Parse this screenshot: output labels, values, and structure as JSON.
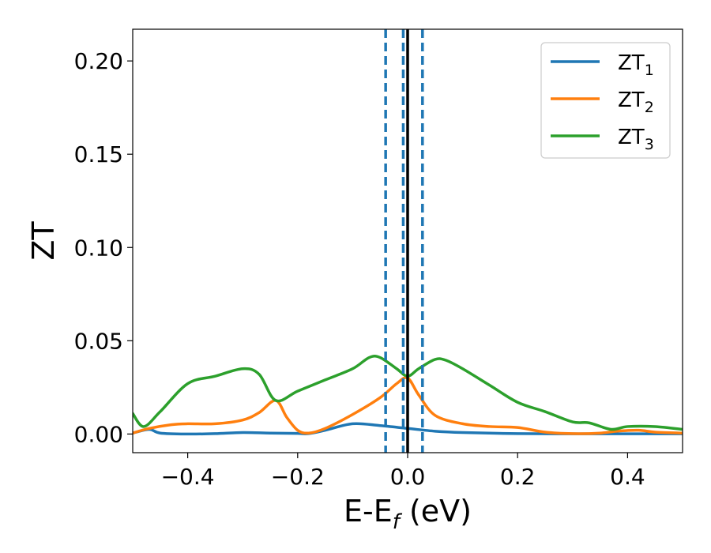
{
  "chart_data": {
    "type": "line",
    "xlabel": {
      "base": "E-E",
      "sub": "f",
      "suffix": " (eV)"
    },
    "ylabel": "ZT",
    "xlim": [
      -0.5,
      0.5
    ],
    "ylim": [
      -0.01,
      0.217
    ],
    "x_ticks": [
      -0.4,
      -0.2,
      0.0,
      0.2,
      0.4
    ],
    "x_tick_labels": [
      "−0.4",
      "−0.2",
      "0.0",
      "0.2",
      "0.4"
    ],
    "y_ticks": [
      0.0,
      0.05,
      0.1,
      0.15,
      0.2
    ],
    "y_tick_labels": [
      "0.00",
      "0.05",
      "0.10",
      "0.15",
      "0.20"
    ],
    "grid": false,
    "legend_position": "top-right",
    "series": [
      {
        "name": "ZT",
        "sub": "1",
        "color": "#1f77b4",
        "points": [
          [
            -0.5,
            0.0005
          ],
          [
            -0.47,
            0.0025
          ],
          [
            -0.45,
            0.0005
          ],
          [
            -0.4,
            0.0
          ],
          [
            -0.35,
            0.0002
          ],
          [
            -0.3,
            0.0008
          ],
          [
            -0.25,
            0.0005
          ],
          [
            -0.2,
            0.0003
          ],
          [
            -0.18,
            0.0002
          ],
          [
            -0.15,
            0.002
          ],
          [
            -0.1,
            0.0055
          ],
          [
            -0.05,
            0.0045
          ],
          [
            0.0,
            0.003
          ],
          [
            0.05,
            0.0015
          ],
          [
            0.1,
            0.0008
          ],
          [
            0.2,
            0.0002
          ],
          [
            0.3,
            0.0001
          ],
          [
            0.4,
            0.0001
          ],
          [
            0.5,
            0.0001
          ]
        ]
      },
      {
        "name": "ZT",
        "sub": "2",
        "color": "#ff7f0e",
        "points": [
          [
            -0.5,
            0.0005
          ],
          [
            -0.47,
            0.003
          ],
          [
            -0.43,
            0.005
          ],
          [
            -0.4,
            0.0055
          ],
          [
            -0.35,
            0.0055
          ],
          [
            -0.3,
            0.0075
          ],
          [
            -0.27,
            0.0115
          ],
          [
            -0.24,
            0.018
          ],
          [
            -0.22,
            0.009
          ],
          [
            -0.2,
            0.002
          ],
          [
            -0.18,
            0.0005
          ],
          [
            -0.15,
            0.003
          ],
          [
            -0.1,
            0.0105
          ],
          [
            -0.05,
            0.0195
          ],
          [
            -0.02,
            0.027
          ],
          [
            0.0,
            0.03
          ],
          [
            0.02,
            0.021
          ],
          [
            0.05,
            0.01
          ],
          [
            0.1,
            0.0055
          ],
          [
            0.15,
            0.004
          ],
          [
            0.2,
            0.0035
          ],
          [
            0.25,
            0.001
          ],
          [
            0.3,
            0.0002
          ],
          [
            0.35,
            0.0005
          ],
          [
            0.38,
            0.0015
          ],
          [
            0.42,
            0.002
          ],
          [
            0.45,
            0.001
          ],
          [
            0.5,
            0.0005
          ]
        ]
      },
      {
        "name": "ZT",
        "sub": "3",
        "color": "#2ca02c",
        "points": [
          [
            -0.5,
            0.011
          ],
          [
            -0.48,
            0.004
          ],
          [
            -0.45,
            0.012
          ],
          [
            -0.4,
            0.027
          ],
          [
            -0.35,
            0.031
          ],
          [
            -0.3,
            0.035
          ],
          [
            -0.27,
            0.032
          ],
          [
            -0.24,
            0.018
          ],
          [
            -0.2,
            0.023
          ],
          [
            -0.15,
            0.029
          ],
          [
            -0.1,
            0.035
          ],
          [
            -0.07,
            0.041
          ],
          [
            -0.05,
            0.041
          ],
          [
            -0.02,
            0.035
          ],
          [
            0.0,
            0.031
          ],
          [
            0.02,
            0.035
          ],
          [
            0.05,
            0.04
          ],
          [
            0.07,
            0.0395
          ],
          [
            0.1,
            0.035
          ],
          [
            0.15,
            0.026
          ],
          [
            0.2,
            0.017
          ],
          [
            0.25,
            0.012
          ],
          [
            0.3,
            0.0065
          ],
          [
            0.33,
            0.006
          ],
          [
            0.37,
            0.0025
          ],
          [
            0.4,
            0.004
          ],
          [
            0.45,
            0.004
          ],
          [
            0.5,
            0.0025
          ]
        ]
      }
    ],
    "vlines": [
      {
        "x": 0.0,
        "style": "solid",
        "color": "#000000"
      },
      {
        "x": -0.04,
        "style": "dashed",
        "color": "#1f77b4"
      },
      {
        "x": -0.008,
        "style": "dashed",
        "color": "#1f77b4"
      },
      {
        "x": 0.027,
        "style": "dashed",
        "color": "#1f77b4"
      }
    ]
  }
}
